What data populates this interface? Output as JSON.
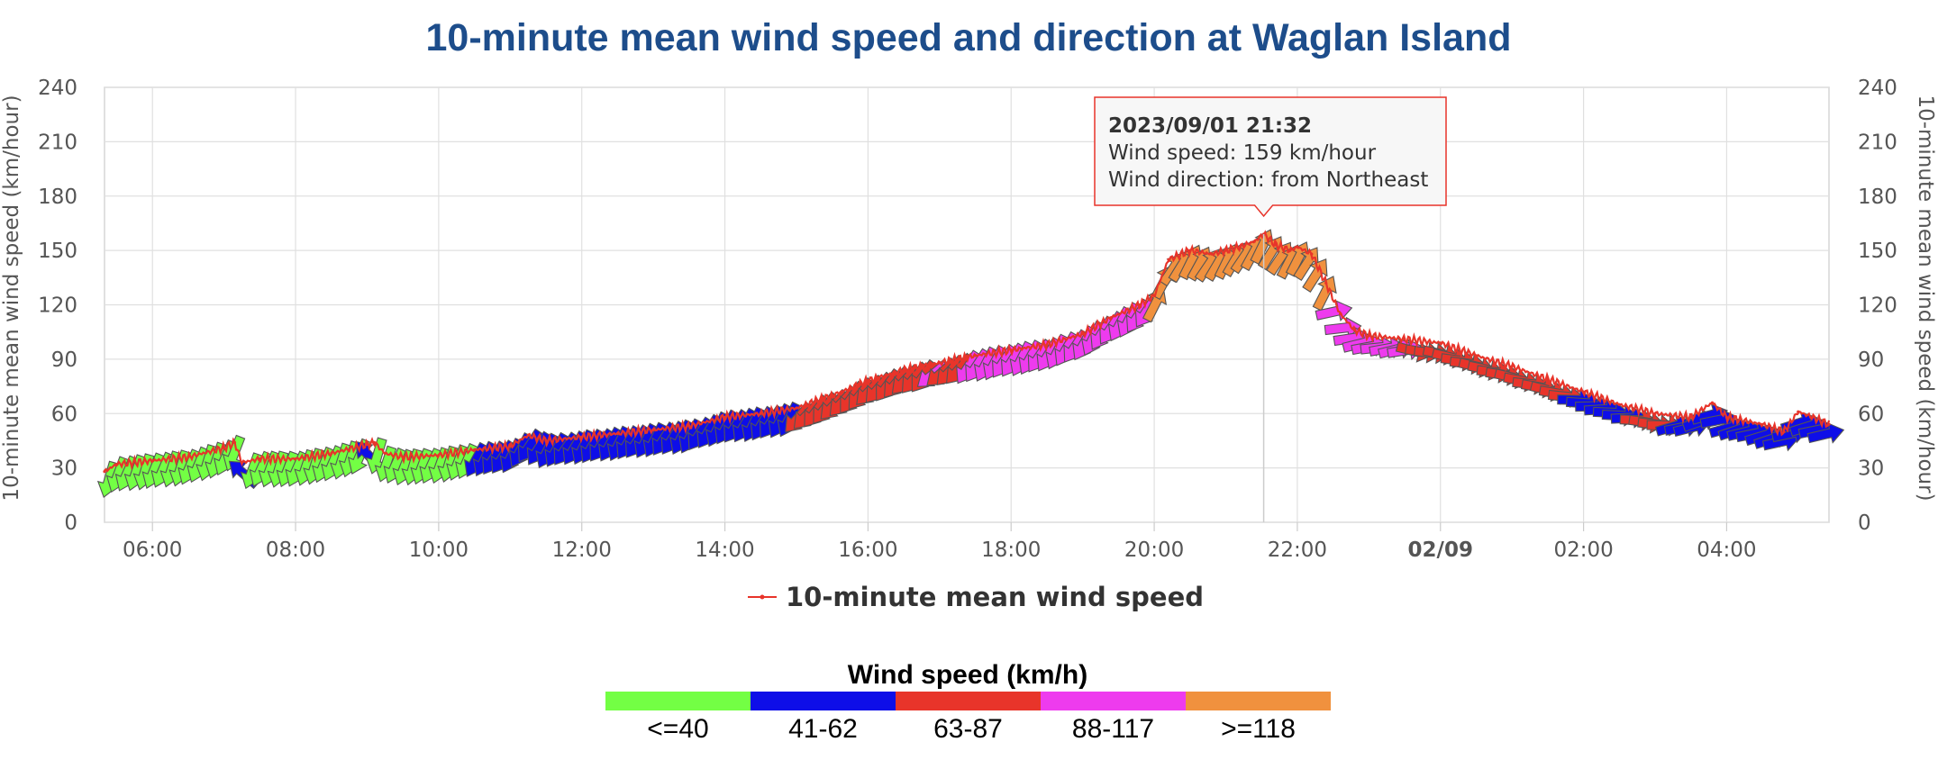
{
  "chart_data": {
    "type": "line",
    "title": "10-minute mean wind speed and direction at Waglan Island",
    "ylabel_left": "10-minute mean wind speed (km/hour)",
    "ylabel_right": "10-minute mean wind speed (km/hour)",
    "ylim": [
      0,
      240
    ],
    "yticks": [
      0,
      30,
      60,
      90,
      120,
      150,
      180,
      210,
      240
    ],
    "xlim_hours": [
      5.33,
      29.43
    ],
    "xticks": [
      {
        "h": 6,
        "label": "06:00"
      },
      {
        "h": 8,
        "label": "08:00"
      },
      {
        "h": 10,
        "label": "10:00"
      },
      {
        "h": 12,
        "label": "12:00"
      },
      {
        "h": 14,
        "label": "14:00"
      },
      {
        "h": 16,
        "label": "16:00"
      },
      {
        "h": 18,
        "label": "18:00"
      },
      {
        "h": 20,
        "label": "20:00"
      },
      {
        "h": 22,
        "label": "22:00"
      },
      {
        "h": 24,
        "label": "02/09",
        "bold": true
      },
      {
        "h": 26,
        "label": "02:00"
      },
      {
        "h": 28,
        "label": "04:00"
      }
    ],
    "grid": true,
    "legend_position": "bottom-center",
    "series": [
      {
        "name": "10-minute mean wind speed",
        "color": "#e8342a",
        "points": [
          [
            5.33,
            28
          ],
          [
            5.5,
            32
          ],
          [
            6.0,
            34
          ],
          [
            6.5,
            36
          ],
          [
            7.0,
            41
          ],
          [
            7.15,
            44
          ],
          [
            7.25,
            33
          ],
          [
            7.5,
            35
          ],
          [
            8.0,
            35
          ],
          [
            8.5,
            38
          ],
          [
            9.0,
            43
          ],
          [
            9.1,
            44
          ],
          [
            9.25,
            38
          ],
          [
            9.5,
            36
          ],
          [
            10.0,
            37
          ],
          [
            10.5,
            40
          ],
          [
            11.0,
            42
          ],
          [
            11.25,
            48
          ],
          [
            11.5,
            45
          ],
          [
            12.0,
            47
          ],
          [
            12.5,
            49
          ],
          [
            13.0,
            51
          ],
          [
            13.5,
            53
          ],
          [
            14.0,
            58
          ],
          [
            14.5,
            60
          ],
          [
            15.0,
            63
          ],
          [
            15.5,
            70
          ],
          [
            16.0,
            78
          ],
          [
            16.5,
            84
          ],
          [
            17.0,
            88
          ],
          [
            17.5,
            92
          ],
          [
            18.0,
            95
          ],
          [
            18.5,
            98
          ],
          [
            19.0,
            104
          ],
          [
            19.4,
            113
          ],
          [
            19.8,
            120
          ],
          [
            20.0,
            125
          ],
          [
            20.2,
            145
          ],
          [
            20.5,
            150
          ],
          [
            20.8,
            148
          ],
          [
            21.0,
            150
          ],
          [
            21.2,
            152
          ],
          [
            21.4,
            155
          ],
          [
            21.53,
            159
          ],
          [
            21.7,
            153
          ],
          [
            21.9,
            150
          ],
          [
            22.0,
            152
          ],
          [
            22.2,
            148
          ],
          [
            22.4,
            132
          ],
          [
            22.6,
            115
          ],
          [
            22.8,
            106
          ],
          [
            23.0,
            103
          ],
          [
            23.5,
            101
          ],
          [
            24.0,
            99
          ],
          [
            24.5,
            92
          ],
          [
            25.0,
            86
          ],
          [
            25.5,
            79
          ],
          [
            26.0,
            72
          ],
          [
            26.5,
            65
          ],
          [
            27.0,
            60
          ],
          [
            27.5,
            58
          ],
          [
            27.8,
            66
          ],
          [
            28.0,
            58
          ],
          [
            28.5,
            54
          ],
          [
            28.8,
            50
          ],
          [
            29.0,
            61
          ],
          [
            29.2,
            58
          ],
          [
            29.43,
            54
          ]
        ]
      }
    ],
    "tooltip": {
      "at_hour": 21.53,
      "time": "2023/09/01 21:32",
      "speed_text": "Wind speed: 159 km/hour",
      "direction_text": "Wind direction: from Northeast"
    },
    "colorbar": {
      "title": "Wind speed (km/h)",
      "bins": [
        {
          "label": "<=40",
          "color": "#73ff44"
        },
        {
          "label": "41-62",
          "color": "#0e0ee8"
        },
        {
          "label": "63-87",
          "color": "#e8342a"
        },
        {
          "label": "88-117",
          "color": "#ee3bee"
        },
        {
          "label": ">=118",
          "color": "#f0913e"
        }
      ]
    },
    "direction_segments": [
      {
        "start": 5.33,
        "end": 7.2,
        "deg": 200,
        "bin": 0
      },
      {
        "start": 7.2,
        "end": 7.3,
        "deg": 315,
        "bin": 1
      },
      {
        "start": 7.3,
        "end": 8.95,
        "deg": 200,
        "bin": 0
      },
      {
        "start": 8.95,
        "end": 9.05,
        "deg": 315,
        "bin": 1
      },
      {
        "start": 9.05,
        "end": 10.5,
        "deg": 200,
        "bin": 0
      },
      {
        "start": 10.5,
        "end": 14.9,
        "deg": 210,
        "bin": 1
      },
      {
        "start": 14.9,
        "end": 16.8,
        "deg": 220,
        "bin": 2
      },
      {
        "start": 16.8,
        "end": 17.0,
        "deg": 230,
        "bin": 3
      },
      {
        "start": 17.0,
        "end": 17.3,
        "deg": 225,
        "bin": 2
      },
      {
        "start": 17.3,
        "end": 19.9,
        "deg": 210,
        "bin": 3
      },
      {
        "start": 19.9,
        "end": 22.4,
        "deg": 30,
        "bin": 4
      },
      {
        "start": 22.4,
        "end": 23.6,
        "deg": 80,
        "bin": 3
      },
      {
        "start": 23.6,
        "end": 25.8,
        "deg": 100,
        "bin": 2
      },
      {
        "start": 25.8,
        "end": 26.7,
        "deg": 90,
        "bin": 1
      },
      {
        "start": 26.7,
        "end": 27.2,
        "deg": 95,
        "bin": 2
      },
      {
        "start": 27.2,
        "end": 29.43,
        "deg": 75,
        "bin": 1
      }
    ]
  }
}
